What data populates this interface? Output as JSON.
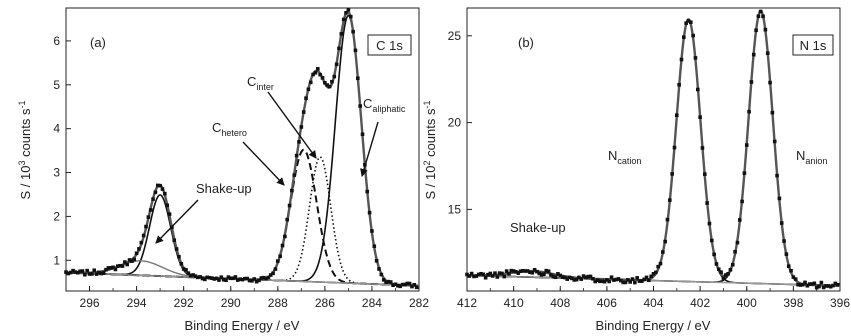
{
  "chart_data": [
    {
      "type": "line",
      "panel_label": "(a)",
      "region_label": "C 1s",
      "xlabel": "Binding Energy / eV",
      "ylabel": "S / 10³ counts s⁻¹",
      "ylabel_parts": {
        "prefix": "S / 10",
        "exp": "3",
        "mid": " counts s",
        "exp2": "-1"
      },
      "xlim": [
        297,
        282
      ],
      "ylim": [
        0.3,
        6.75
      ],
      "xticks": [
        296,
        294,
        292,
        290,
        288,
        286,
        284,
        282
      ],
      "yticks": [
        1,
        2,
        3,
        4,
        5,
        6
      ],
      "components": [
        {
          "name": "C_aliphatic",
          "sub": "aliphatic",
          "center": 285.0,
          "height": 6.1,
          "sigma": 0.55,
          "style": "solid"
        },
        {
          "name": "C_inter",
          "sub": "inter",
          "center": 286.2,
          "height": 2.85,
          "sigma": 0.45,
          "style": "dotted"
        },
        {
          "name": "C_hetero",
          "sub": "hetero",
          "center": 286.9,
          "height": 3.0,
          "sigma": 0.55,
          "style": "dashed"
        },
        {
          "name": "Shake-up",
          "center": 293.0,
          "height": 1.85,
          "sigma": 0.45,
          "style": "solid"
        }
      ],
      "shakeup_bump": {
        "center": 293.8,
        "height": 0.33,
        "sigma": 0.9
      },
      "background": {
        "left": 0.72,
        "right": 0.42
      },
      "annotations": [
        {
          "text": "C",
          "sub": "inter"
        },
        {
          "text": "C",
          "sub": "hetero"
        },
        {
          "text": "C",
          "sub": "aliphatic"
        },
        {
          "text": "Shake-up"
        }
      ]
    },
    {
      "type": "line",
      "panel_label": "(b)",
      "region_label": "N 1s",
      "xlabel": "Binding Energy / eV",
      "ylabel": "S / 10² counts s⁻¹",
      "ylabel_parts": {
        "prefix": "S / 10",
        "exp": "2",
        "mid": " counts s",
        "exp2": "-1"
      },
      "xlim": [
        412,
        396
      ],
      "ylim": [
        10.3,
        26.6
      ],
      "xticks": [
        412,
        410,
        408,
        406,
        404,
        402,
        400,
        398,
        396
      ],
      "yticks": [
        15,
        20,
        25
      ],
      "components": [
        {
          "name": "N_cation",
          "sub": "cation",
          "center": 402.5,
          "height": 15.1,
          "sigma": 0.52,
          "style": "solid"
        },
        {
          "name": "N_anion",
          "sub": "anion",
          "center": 399.4,
          "height": 15.7,
          "sigma": 0.52,
          "style": "solid"
        }
      ],
      "shakeup_bump": {
        "center": 409.2,
        "height": 0.35,
        "sigma": 0.9
      },
      "background": {
        "left": 11.2,
        "right": 10.6
      },
      "annotations": [
        {
          "text": "N",
          "sub": "cation"
        },
        {
          "text": "N",
          "sub": "anion"
        },
        {
          "text": "Shake-up"
        }
      ]
    }
  ]
}
